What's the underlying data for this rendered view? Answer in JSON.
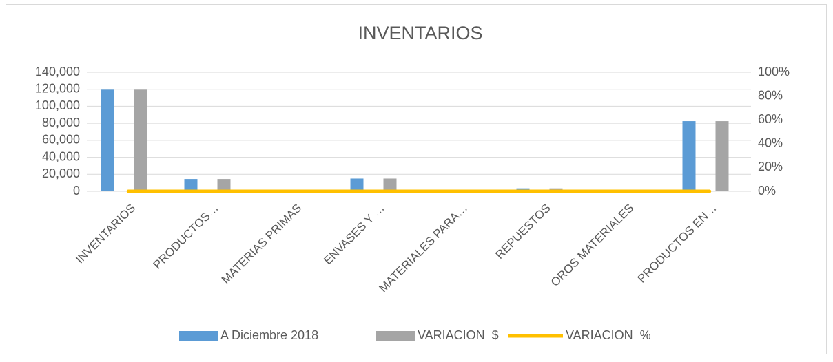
{
  "chart_data": {
    "type": "bar",
    "title": "INVENTARIOS",
    "categories": [
      "INVENTARIOS",
      "PRODUCTOS…",
      "MATERIAS PRIMAS",
      "ENVASES Y …",
      "MATERIALES PARA…",
      "REPUESTOS",
      "OROS MATERIALES",
      "PRODUCTOS EN…"
    ],
    "series": [
      {
        "name": "A Diciembre 2018",
        "color": "#5b9bd5",
        "type": "bar",
        "values": [
          119500,
          14500,
          1500,
          15000,
          0,
          3500,
          0,
          82500
        ]
      },
      {
        "name": "VARIACION  $",
        "color": "#a5a5a5",
        "type": "bar",
        "values": [
          119500,
          14500,
          1500,
          15000,
          0,
          3500,
          0,
          82500
        ]
      },
      {
        "name": "VARIACION  %",
        "color": "#ffc000",
        "type": "line",
        "axis": "y2",
        "values": [
          0,
          0,
          0,
          0,
          0,
          0,
          0,
          0
        ]
      }
    ],
    "ylim": [
      0,
      140000
    ],
    "yticks": [
      0,
      {
        "value": 20000,
        "label": "20,000"
      },
      {
        "value": 40000,
        "label": "40,000"
      },
      {
        "value": 60000,
        "label": "60,000"
      },
      {
        "value": 80000,
        "label": "80,000"
      },
      {
        "value": 100000,
        "label": "100,000"
      },
      {
        "value": 120000,
        "label": "120,000"
      },
      {
        "value": 140000,
        "label": "140,000"
      }
    ],
    "y2lim": [
      0,
      100
    ],
    "y2ticks": [
      {
        "value": 0,
        "label": "0%"
      },
      {
        "value": 20,
        "label": "20%"
      },
      {
        "value": 40,
        "label": "40%"
      },
      {
        "value": 60,
        "label": "60%"
      },
      {
        "value": 80,
        "label": "80%"
      },
      {
        "value": 100,
        "label": "100%"
      }
    ],
    "grid": true,
    "legend": "bottom"
  }
}
